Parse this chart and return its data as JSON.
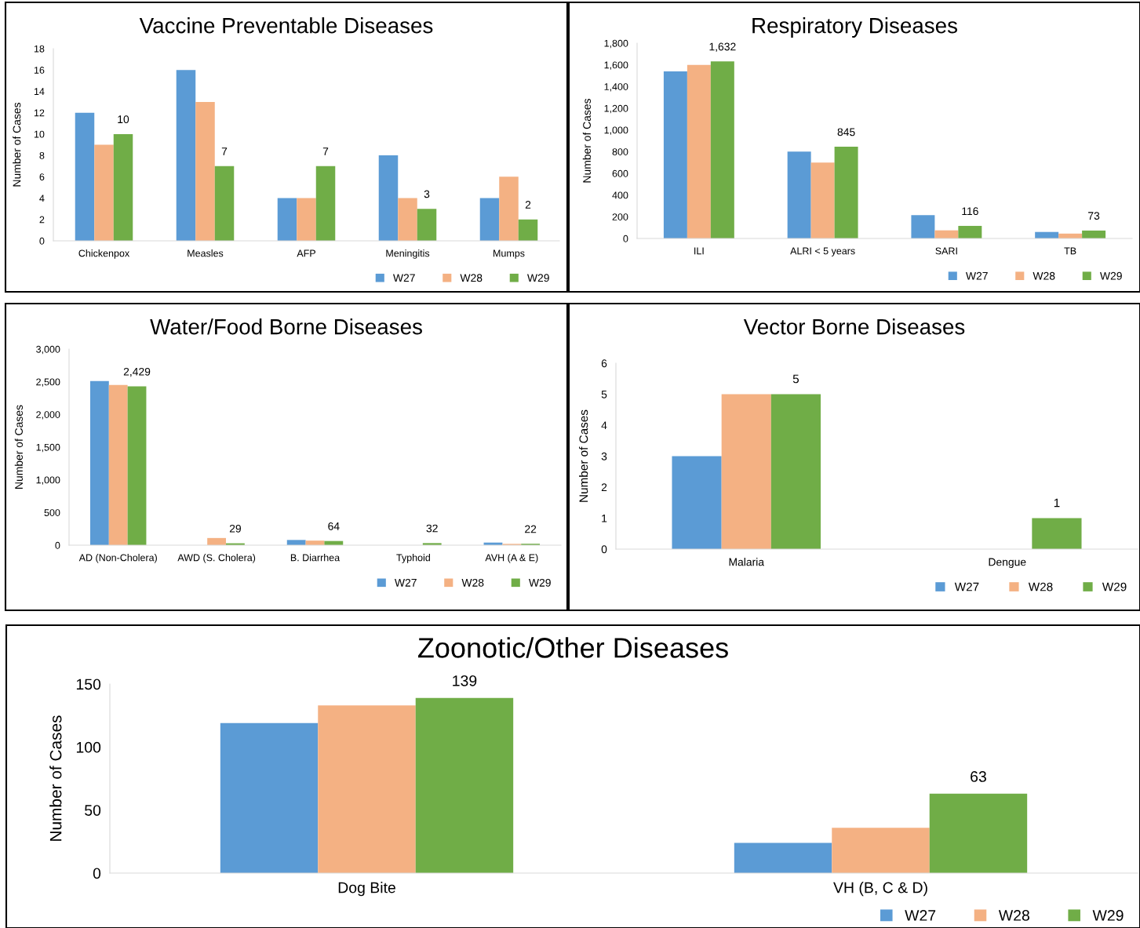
{
  "chart_data": [
    {
      "type": "bar",
      "title": "Vaccine Preventable Diseases",
      "ylabel": "Number of Cases",
      "categories": [
        "Chickenpox",
        "Measles",
        "AFP",
        "Meningitis",
        "Mumps"
      ],
      "ylim": [
        0,
        18
      ],
      "yticks": [
        0,
        2,
        4,
        6,
        8,
        10,
        12,
        14,
        16,
        18
      ],
      "legend": "bottom right",
      "series": [
        {
          "name": "W27",
          "color": "#5b9bd5",
          "values": [
            12,
            16,
            4,
            8,
            4
          ]
        },
        {
          "name": "W28",
          "color": "#f4b183",
          "values": [
            9,
            13,
            4,
            4,
            6
          ]
        },
        {
          "name": "W29",
          "color": "#70ad47",
          "values": [
            10,
            7,
            7,
            3,
            2
          ],
          "value_labels": [
            "10",
            "7",
            "7",
            "3",
            "2"
          ]
        }
      ]
    },
    {
      "type": "bar",
      "title": "Respiratory Diseases",
      "ylabel": "Number of Cases",
      "categories": [
        "ILI",
        "ALRI < 5 years",
        "SARI",
        "TB"
      ],
      "ylim": [
        0,
        1800
      ],
      "yticks": [
        0,
        {
          "value": 200,
          "label": "200"
        },
        {
          "value": 400,
          "label": "400"
        },
        {
          "value": 600,
          "label": "600"
        },
        {
          "value": 800,
          "label": "800"
        },
        {
          "value": 1000,
          "label": "1,000"
        },
        {
          "value": 1200,
          "label": "1,200"
        },
        {
          "value": 1400,
          "label": "1,400"
        },
        {
          "value": 1600,
          "label": "1,600"
        },
        {
          "value": 1800,
          "label": "1,800"
        }
      ],
      "legend": "bottom right",
      "series": [
        {
          "name": "W27",
          "color": "#5b9bd5",
          "values": [
            1540,
            800,
            215,
            60
          ]
        },
        {
          "name": "W28",
          "color": "#f4b183",
          "values": [
            1600,
            700,
            75,
            45
          ]
        },
        {
          "name": "W29",
          "color": "#70ad47",
          "values": [
            1632,
            845,
            116,
            73
          ],
          "value_labels": [
            "1,632",
            "845",
            "116",
            "73"
          ]
        }
      ]
    },
    {
      "type": "bar",
      "title": "Water/Food Borne Diseases",
      "ylabel": "Number of Cases",
      "categories": [
        "AD (Non-Cholera)",
        "AWD (S. Cholera)",
        "B. Diarrhea",
        "Typhoid",
        "AVH (A & E)"
      ],
      "ylim": [
        0,
        3000
      ],
      "yticks": [
        0,
        500,
        {
          "value": 1000,
          "label": "1,000"
        },
        {
          "value": 1500,
          "label": "1,500"
        },
        {
          "value": 2000,
          "label": "2,000"
        },
        {
          "value": 2500,
          "label": "2,500"
        },
        {
          "value": 3000,
          "label": "3,000"
        }
      ],
      "legend": "bottom right",
      "series": [
        {
          "name": "W27",
          "color": "#5b9bd5",
          "values": [
            2510,
            0,
            80,
            null,
            40
          ]
        },
        {
          "name": "W28",
          "color": "#f4b183",
          "values": [
            2450,
            110,
            70,
            null,
            20
          ]
        },
        {
          "name": "W29",
          "color": "#70ad47",
          "values": [
            2429,
            29,
            64,
            32,
            22
          ],
          "value_labels": [
            "2,429",
            "29",
            "64",
            "32",
            "22"
          ]
        }
      ]
    },
    {
      "type": "bar",
      "title": "Vector Borne Diseases",
      "ylabel": "Number of Cases",
      "categories": [
        "Malaria",
        "Dengue"
      ],
      "ylim": [
        0,
        6
      ],
      "yticks": [
        0,
        1,
        2,
        3,
        4,
        5,
        6
      ],
      "legend": "bottom right",
      "series": [
        {
          "name": "W27",
          "color": "#5b9bd5",
          "values": [
            3,
            0
          ]
        },
        {
          "name": "W28",
          "color": "#f4b183",
          "values": [
            5,
            0
          ]
        },
        {
          "name": "W29",
          "color": "#70ad47",
          "values": [
            5,
            1
          ],
          "value_labels": [
            "5",
            "1"
          ]
        }
      ]
    },
    {
      "type": "bar",
      "title": "Zoonotic/Other Diseases",
      "ylabel": "Number of Cases",
      "categories": [
        "Dog Bite",
        "VH (B, C & D)"
      ],
      "ylim": [
        0,
        150
      ],
      "yticks": [
        0,
        50,
        100,
        150
      ],
      "legend": "bottom right",
      "series": [
        {
          "name": "W27",
          "color": "#5b9bd5",
          "values": [
            119,
            24
          ]
        },
        {
          "name": "W28",
          "color": "#f4b183",
          "values": [
            133,
            36
          ]
        },
        {
          "name": "W29",
          "color": "#70ad47",
          "values": [
            139,
            63
          ],
          "value_labels": [
            "139",
            "63"
          ]
        }
      ]
    }
  ]
}
